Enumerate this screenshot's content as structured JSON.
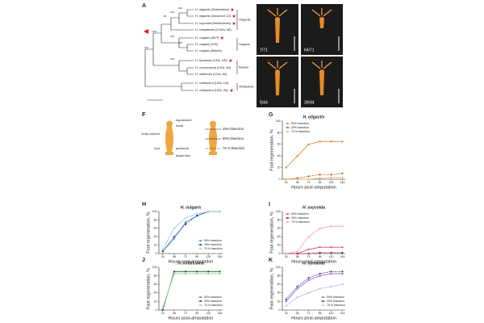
{
  "panels": [
    "A",
    "B",
    "C",
    "D",
    "E",
    "F",
    "G",
    "H",
    "I",
    "J",
    "K"
  ],
  "tree": {
    "leaves": [
      "H. oligactis (Switzerland)",
      "H. oligactis (Innsbruck 12)",
      "H. oxycnida (Netherlands)",
      "H. canadensis (USArv, MI)",
      "H. vulgaris (AEP)",
      "H. vulgaris (105)",
      "H. vulgaris (Basel1)",
      "H. hymanae (USA, OR)",
      "H. circumcincta (USA, AK)",
      "H. utahensis (USA, AK)",
      "H. viridissima (USA, CA)",
      "H. viridissima (USA, PA)"
    ],
    "groups": [
      "Oligactis",
      "Vulgaris",
      "Braueri",
      "Viridissima"
    ],
    "bootstrap": [
      "100",
      "100",
      "98",
      "100",
      "100",
      "100",
      "100",
      "100"
    ]
  },
  "photos": [
    "7/71",
    "64/71",
    "5/44",
    "39/44"
  ],
  "diagram": {
    "anatomy": [
      "hypostome",
      "head",
      "body column",
      "peduncle",
      "foot",
      "basal disc"
    ],
    "cuts": [
      "25% bisection",
      "50% bisection",
      "75 % bisection"
    ]
  },
  "chart_data": [
    {
      "type": "line",
      "title": "H. oligactis",
      "x_label": "Hours post-amputation",
      "y_label": "Foot regeneration, %",
      "x": [
        24,
        48,
        72,
        96,
        120,
        144
      ],
      "xlim": [
        16,
        150
      ],
      "xticks": [
        24,
        48,
        72,
        96,
        120,
        144
      ],
      "ylim": [
        0,
        100
      ],
      "yticks": [
        0,
        20,
        40,
        60,
        80,
        100
      ],
      "legend": "upper left",
      "series": [
        {
          "name": "50% bisection",
          "color": "#d9822b",
          "values": [
            20,
            40,
            60,
            65,
            65,
            65
          ]
        },
        {
          "name": "25% bisection",
          "color": "#a85a12",
          "values": [
            0,
            2,
            5,
            8,
            8,
            10
          ]
        },
        {
          "name": "75 % bisection",
          "color": "#f0b070",
          "values": [
            0,
            0,
            0,
            2,
            3,
            3
          ]
        }
      ]
    },
    {
      "type": "line",
      "title": "H. vulgaris",
      "x_label": "Hours post-amputation",
      "y_label": "Foot regeneration, %",
      "x": [
        24,
        48,
        72,
        96,
        120,
        144
      ],
      "xlim": [
        16,
        150
      ],
      "xticks": [
        24,
        48,
        72,
        96,
        120,
        144
      ],
      "ylim": [
        0,
        100
      ],
      "yticks": [
        0,
        20,
        40,
        60,
        80,
        100
      ],
      "legend": "lower right",
      "series": [
        {
          "name": "50% bisection",
          "color": "#4a90d9",
          "values": [
            5,
            35,
            75,
            90,
            100,
            100
          ]
        },
        {
          "name": "25% bisection",
          "color": "#1b2f6b",
          "values": [
            5,
            40,
            70,
            90,
            100,
            100
          ]
        },
        {
          "name": "75 % bisection",
          "color": "#9cc8ef",
          "values": [
            10,
            60,
            85,
            95,
            100,
            100
          ]
        }
      ]
    },
    {
      "type": "line",
      "title": "H. oxycnida",
      "x_label": "Hours post-amputation",
      "y_label": "Foot regeneration, %",
      "x": [
        24,
        48,
        72,
        96,
        120,
        144
      ],
      "xlim": [
        16,
        150
      ],
      "xticks": [
        24,
        48,
        72,
        96,
        120,
        144
      ],
      "ylim": [
        0,
        100
      ],
      "yticks": [
        0,
        20,
        40,
        60,
        80,
        100
      ],
      "legend": "upper left",
      "series": [
        {
          "name": "50% bisection",
          "color": "#e0457a",
          "values": [
            0,
            0,
            10,
            15,
            15,
            15
          ]
        },
        {
          "name": "25% bisection",
          "color": "#8e1538",
          "values": [
            0,
            0,
            0,
            2,
            2,
            2
          ]
        },
        {
          "name": "75 % bisection",
          "color": "#f3a3bf",
          "values": [
            0,
            5,
            40,
            60,
            65,
            65
          ]
        }
      ]
    },
    {
      "type": "line",
      "title": "H. viridissima",
      "x_label": "Hours post-amputation",
      "y_label": "Foot regeneration, %",
      "x": [
        24,
        48,
        72,
        96,
        120,
        144
      ],
      "xlim": [
        16,
        150
      ],
      "xticks": [
        24,
        48,
        72,
        96,
        120,
        144
      ],
      "ylim": [
        0,
        100
      ],
      "yticks": [
        0,
        20,
        40,
        60,
        80,
        100
      ],
      "legend": "lower right",
      "series": [
        {
          "name": "50% bisection",
          "color": "#2e9e3e",
          "values": [
            0,
            90,
            90,
            90,
            90,
            90
          ]
        },
        {
          "name": "25% bisection",
          "color": "#11521c",
          "values": [
            0,
            90,
            90,
            90,
            90,
            90
          ]
        },
        {
          "name": "75 % bisection",
          "color": "#8fd48f",
          "values": [
            5,
            85,
            85,
            85,
            85,
            85
          ]
        }
      ]
    },
    {
      "type": "line",
      "title": "H. hymanae",
      "x_label": "Hours post-amputation",
      "y_label": "Foot regeneration, %",
      "x": [
        24,
        48,
        72,
        96,
        120,
        144
      ],
      "xlim": [
        16,
        150
      ],
      "xticks": [
        24,
        48,
        72,
        96,
        120,
        144
      ],
      "ylim": [
        0,
        100
      ],
      "yticks": [
        0,
        20,
        40,
        60,
        80,
        100
      ],
      "legend": "lower right",
      "series": [
        {
          "name": "50% bisection",
          "color": "#8a63d2",
          "values": [
            20,
            50,
            70,
            80,
            85,
            85
          ]
        },
        {
          "name": "25% bisection",
          "color": "#4b2a8c",
          "values": [
            25,
            55,
            75,
            85,
            90,
            90
          ]
        },
        {
          "name": "75 % bisection",
          "color": "#c7b0ef",
          "values": [
            10,
            30,
            40,
            50,
            55,
            60
          ]
        }
      ]
    }
  ]
}
